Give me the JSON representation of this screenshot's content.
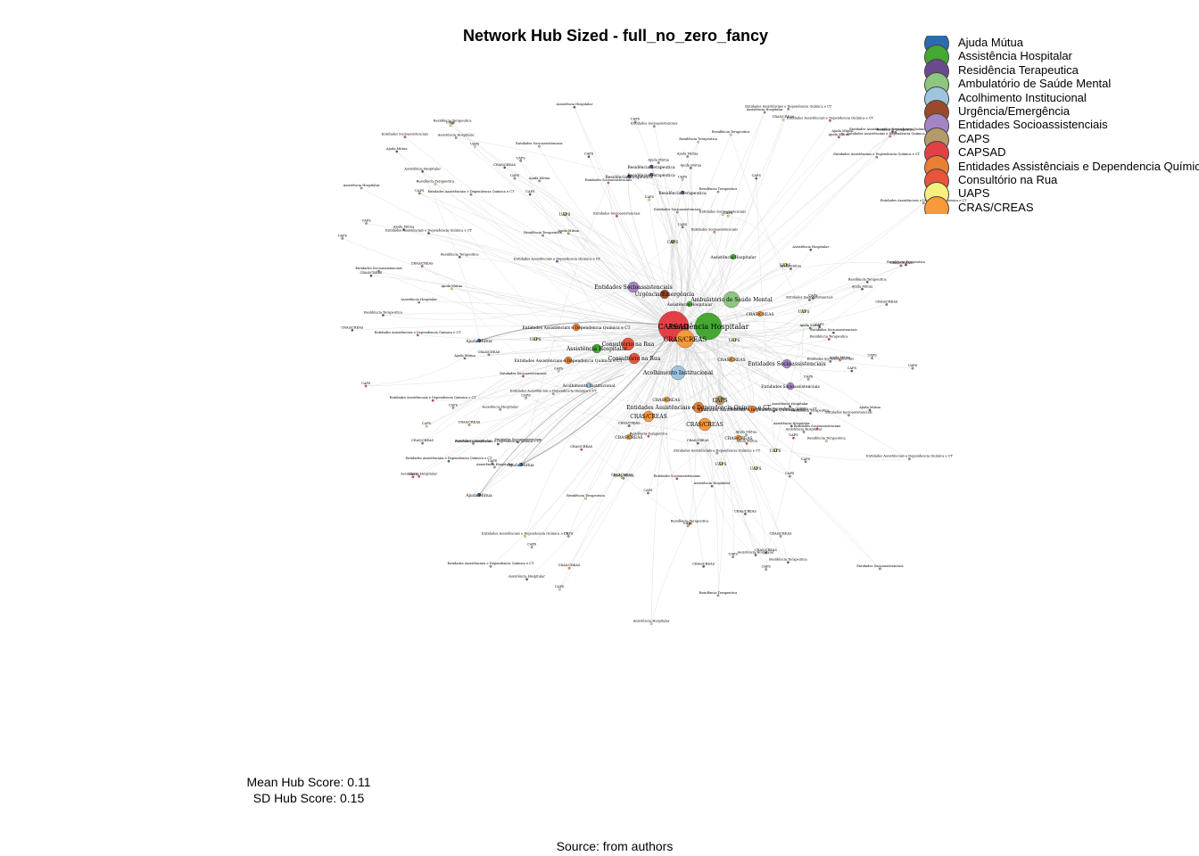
{
  "title": "Network Hub Sized - full_no_zero_fancy",
  "legend": [
    {
      "label": "Ajuda Mútua",
      "color": "#2b6cb0"
    },
    {
      "label": "Assistência Hospitalar",
      "color": "#44a832"
    },
    {
      "label": "Residência Terapeutica",
      "color": "#6a4a8c"
    },
    {
      "label": "Ambulatório de Saúde Mental",
      "color": "#8dc67f"
    },
    {
      "label": "Acolhimento Institucional",
      "color": "#9ec5e0"
    },
    {
      "label": "Urgência/Emergência",
      "color": "#9a4a2a"
    },
    {
      "label": "Entidades Socioassistenciais",
      "color": "#a584c4"
    },
    {
      "label": "CAPS",
      "color": "#b59a6a"
    },
    {
      "label": "CAPSAD",
      "color": "#e34046"
    },
    {
      "label": "Entidades Assistênciais e Dependencia Química e CT",
      "color": "#ea7f34"
    },
    {
      "label": "Consultório na Rua",
      "color": "#e8553c"
    },
    {
      "label": "UAPS",
      "color": "#f6ef7e"
    },
    {
      "label": "CRAS/CREAS",
      "color": "#f8993a"
    }
  ],
  "stats": {
    "mean": "Mean Hub Score: 0.11",
    "sd": "SD Hub Score: 0.15"
  },
  "source": "Source: from authors",
  "network": {
    "center_hubs": [
      {
        "label": "CAPSAD",
        "type": 8
      },
      {
        "label": "Assistência Hospitalar",
        "type": 1
      },
      {
        "label": "CRAS/CREAS",
        "type": 12
      }
    ],
    "labeled_nodes": [
      {
        "label": "Ambulatório de Saúde Mental",
        "type": 3
      },
      {
        "label": "Acolhimento Institucional",
        "type": 4
      },
      {
        "label": "Urgência/Emergência",
        "type": 5
      },
      {
        "label": "Entidades Socioassistenciais",
        "type": 6
      },
      {
        "label": "Entidades Socioassistenciais",
        "type": 6
      },
      {
        "label": "Entidades Socioassistenciais",
        "type": 6
      },
      {
        "label": "Entidades Assistênciais e Dependencia Química e CT",
        "type": 9
      },
      {
        "label": "Entidades Assistênciais e Dependencia Química e CT",
        "type": 9
      },
      {
        "label": "Entidades Assistênciais e Dependencia Química e CT",
        "type": 9
      },
      {
        "label": "Entidades Assistênciais e Dependencia Química e CT",
        "type": 9
      },
      {
        "label": "Consultório na Rua",
        "type": 10
      },
      {
        "label": "Consultório na Rua",
        "type": 10
      },
      {
        "label": "Assistência Hospitalar",
        "type": 1
      },
      {
        "label": "Assistência Hospitalar",
        "type": 1
      },
      {
        "label": "Assistência Hospitalar",
        "type": 1
      },
      {
        "label": "CRAS/CREAS",
        "type": 12
      },
      {
        "label": "CRAS/CREAS",
        "type": 12
      },
      {
        "label": "CRAS/CREAS",
        "type": 12
      },
      {
        "label": "CRAS/CREAS",
        "type": 12
      },
      {
        "label": "CRAS/CREAS",
        "type": 12
      },
      {
        "label": "CRAS/CREAS",
        "type": 12
      },
      {
        "label": "CRAS/CREAS",
        "type": 12
      },
      {
        "label": "CAPS",
        "type": 7
      },
      {
        "label": "CAPS",
        "type": 7
      },
      {
        "label": "Residência Terapeutica",
        "type": 2
      },
      {
        "label": "Residência Terapeutica",
        "type": 2
      },
      {
        "label": "Residência Terapeutica",
        "type": 2
      },
      {
        "label": "Ajuda Mútua",
        "type": 0
      },
      {
        "label": "Ajuda Mútua",
        "type": 0
      },
      {
        "label": "Ajuda Mútua",
        "type": 0
      },
      {
        "label": "UAPS",
        "type": 11
      },
      {
        "label": "UAPS",
        "type": 11
      },
      {
        "label": "UAPS",
        "type": 11
      },
      {
        "label": "UAPS",
        "type": 11
      },
      {
        "label": "UAPS",
        "type": 11
      },
      {
        "label": "UAPS",
        "type": 11
      },
      {
        "label": "UAPS",
        "type": 11
      },
      {
        "label": "UAPS",
        "type": 11
      },
      {
        "label": "Acolhimento Institucional",
        "type": 4
      },
      {
        "label": "Residência Terapeutica",
        "type": 2
      }
    ],
    "peripheral_labels": [
      "Ajuda Mútua",
      "UAPS",
      "CAPS",
      "CRAS/CREAS",
      "Entidades Assistênciais e Dependencia Química e CT",
      "Residência Terapeutica",
      "Entidades Socioassistenciais",
      "Assistência Hospitalar"
    ]
  }
}
